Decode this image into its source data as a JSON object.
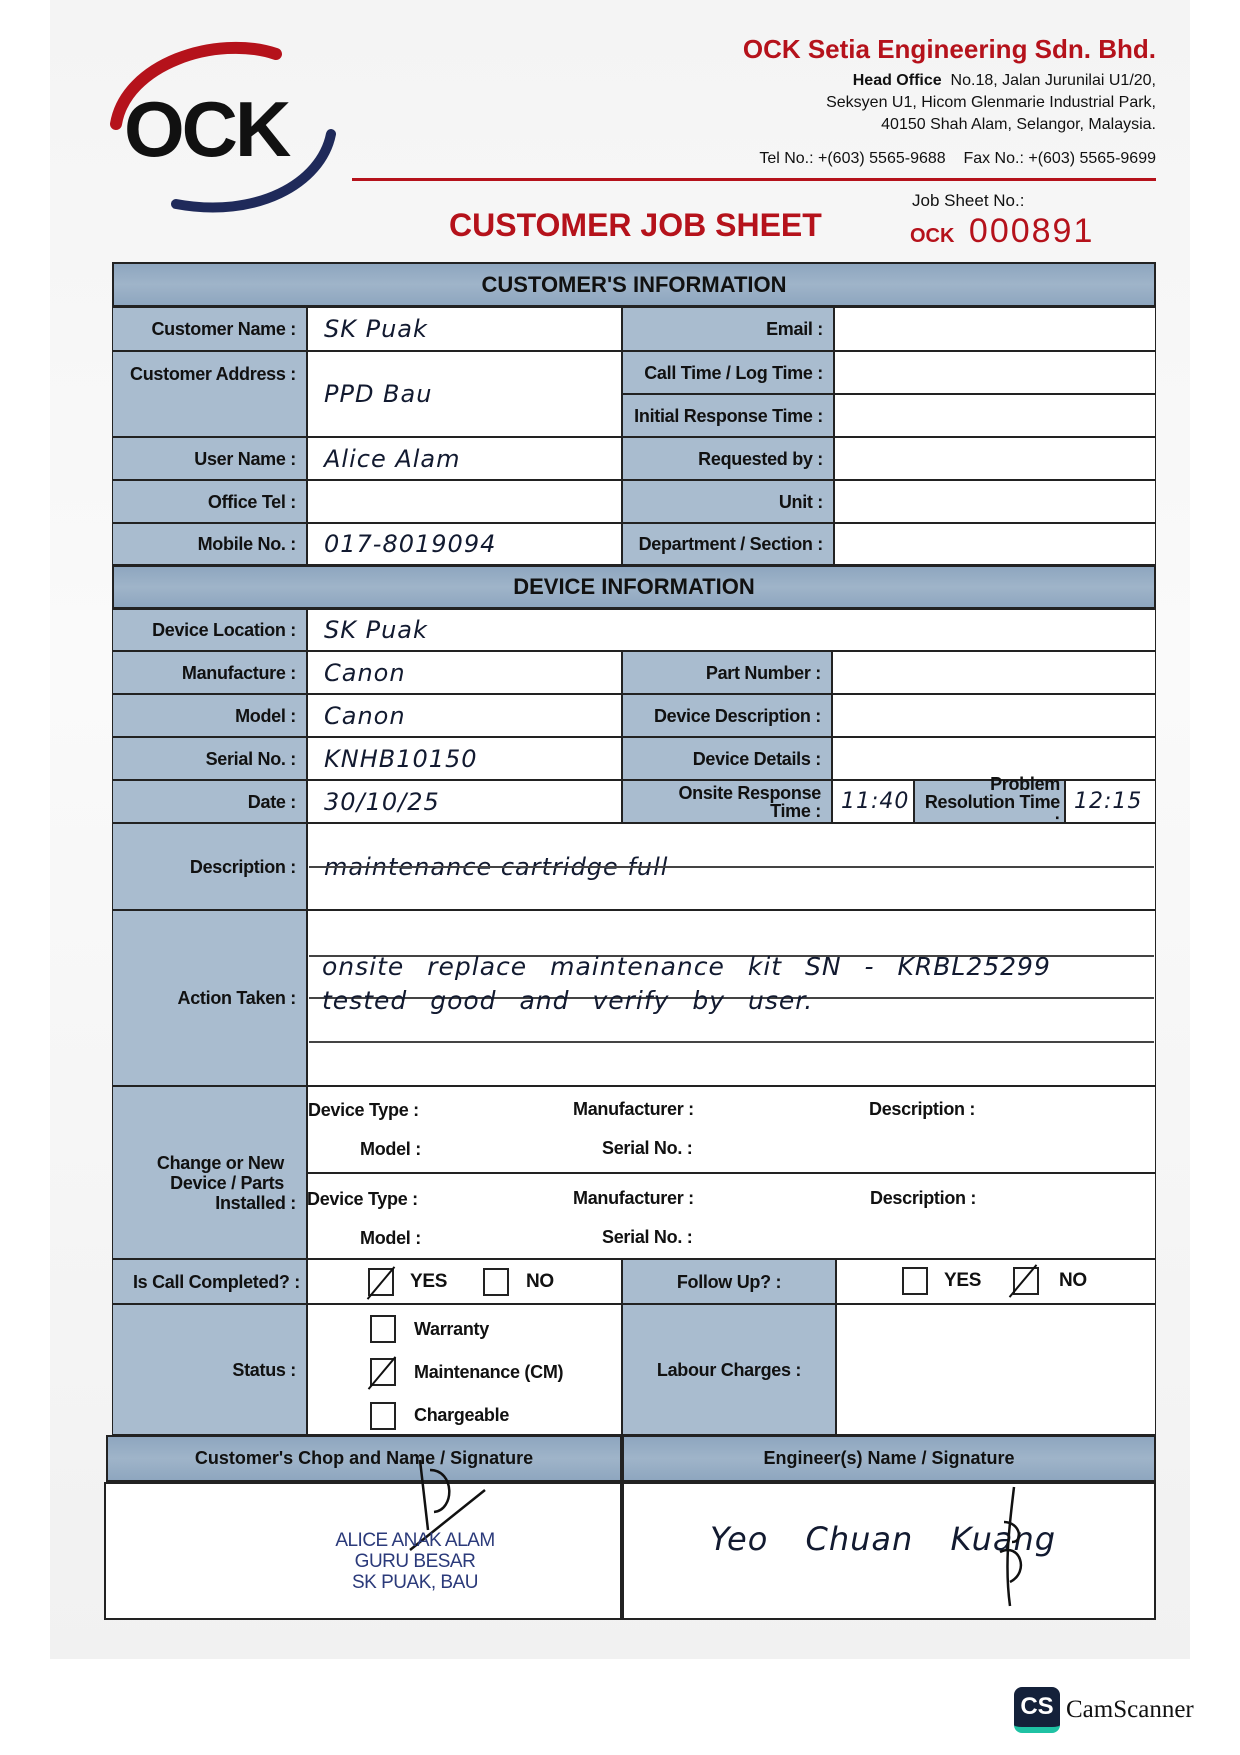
{
  "header": {
    "logo_text": "OCK",
    "company": "OCK Setia Engineering Sdn. Bhd.",
    "head_office_label": "Head Office",
    "address_line1": "No.18, Jalan Jurunilai U1/20,",
    "address_line2": "Seksyen U1, Hicom Glenmarie Industrial Park,",
    "address_line3": "40150 Shah Alam, Selangor, Malaysia.",
    "tel": "Tel No.: +(603) 5565-9688",
    "fax": "Fax No.: +(603) 5565-9699",
    "title": "CUSTOMER JOB SHEET",
    "job_sheet_label": "Job Sheet No.:",
    "job_prefix": "OCK",
    "job_no": "000891"
  },
  "colors": {
    "brand_red": "#b5121b",
    "brand_navy": "#1f2a5a",
    "label_fill": "#a9bccf"
  },
  "customer_info": {
    "title": "CUSTOMER'S INFORMATION",
    "customer_name": {
      "label": "Customer Name :",
      "value": "SK Puak"
    },
    "customer_address": {
      "label": "Customer Address :",
      "value": "PPD Bau"
    },
    "user_name": {
      "label": "User Name :",
      "value": "Alice Alam"
    },
    "office_tel": {
      "label": "Office Tel :",
      "value": ""
    },
    "mobile_no": {
      "label": "Mobile No. :",
      "value": "017-8019094"
    },
    "email": {
      "label": "Email :",
      "value": ""
    },
    "call_time": {
      "label": "Call Time / Log Time :",
      "value": ""
    },
    "initial_response": {
      "label": "Initial Response Time :",
      "value": ""
    },
    "requested_by": {
      "label": "Requested by :",
      "value": ""
    },
    "unit": {
      "label": "Unit :",
      "value": ""
    },
    "department": {
      "label": "Department / Section :",
      "value": ""
    }
  },
  "device_info": {
    "title": "DEVICE INFORMATION",
    "device_location": {
      "label": "Device Location :",
      "value": "SK Puak"
    },
    "manufacture": {
      "label": "Manufacture :",
      "value": "Canon"
    },
    "model": {
      "label": "Model :",
      "value": "Canon"
    },
    "serial_no": {
      "label": "Serial No. :",
      "value": "KNHB10150"
    },
    "date": {
      "label": "Date :",
      "value": "30/10/25"
    },
    "part_number": {
      "label": "Part Number :",
      "value": ""
    },
    "device_description": {
      "label": "Device Description :",
      "value": ""
    },
    "device_details": {
      "label": "Device Details :",
      "value": ""
    },
    "onsite_response": {
      "label_line1": "Onsite Response",
      "label_line2": "Time :",
      "value": "11:40"
    },
    "problem_resolution": {
      "label_line1": "Problem",
      "label_line2": "Resolution Time :",
      "value": "12:15"
    },
    "description": {
      "label": "Description :",
      "value": "maintenance cartridge full"
    },
    "action_taken": {
      "label": "Action Taken :",
      "line1": "onsite replace maintenance kit SN - KRBL25299",
      "line2": "tested good and verify by user."
    },
    "change_parts": {
      "label_line1": "Change or New",
      "label_line2": "Device / Parts",
      "label_line3": "Installed :",
      "device_type": "Device Type :",
      "manufacturer": "Manufacturer :",
      "description": "Description :",
      "model": "Model :",
      "serial_no": "Serial No. :"
    },
    "call_completed": {
      "label": "Is Call Completed? :",
      "yes": "YES",
      "no": "NO",
      "selected": "YES"
    },
    "follow_up": {
      "label": "Follow Up? :",
      "yes": "YES",
      "no": "NO",
      "selected": "NO"
    },
    "status": {
      "label": "Status :",
      "options": [
        "Warranty",
        "Maintenance (CM)",
        "Chargeable"
      ],
      "selected": "Maintenance (CM)"
    },
    "labour_charges": {
      "label": "Labour Charges :",
      "value": ""
    }
  },
  "signatures": {
    "customer_header": "Customer's Chop and Name / Signature",
    "engineer_header": "Engineer(s) Name / Signature",
    "chop_line1": "ALICE ANAK ALAM",
    "chop_line2": "GURU BESAR",
    "chop_line3": "SK PUAK, BAU",
    "engineer_name": "Yeo Chuan Kuang"
  },
  "watermark": {
    "badge": "CS",
    "text": "CamScanner"
  }
}
